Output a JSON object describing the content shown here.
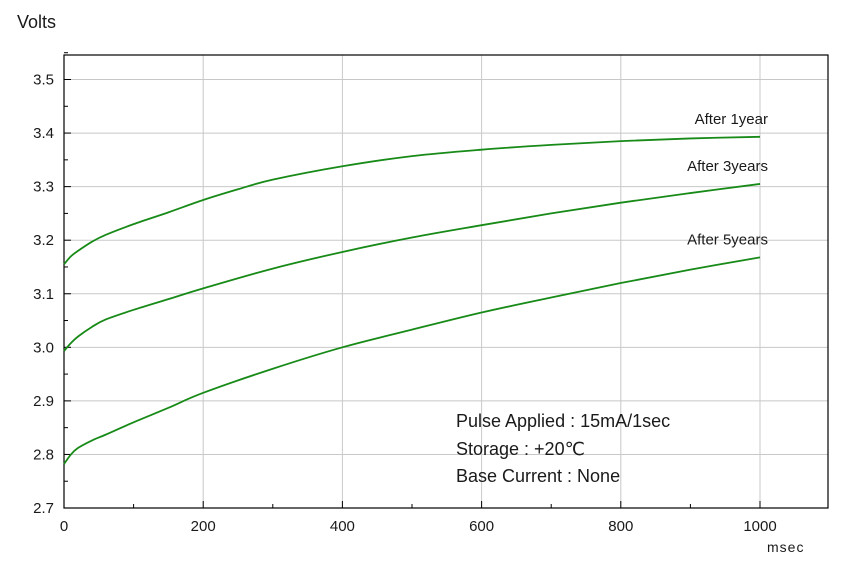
{
  "chart_data": {
    "type": "line",
    "ylabel": "Volts",
    "xlabel": "msec",
    "xlim": [
      0,
      1000
    ],
    "ylim": [
      2.7,
      3.55
    ],
    "x_ticks": [
      0,
      200,
      400,
      600,
      800,
      1000
    ],
    "x_tick_labels": [
      "0",
      "200",
      "400",
      "600",
      "800",
      "1000"
    ],
    "y_ticks": [
      2.7,
      2.8,
      2.9,
      3.0,
      3.1,
      3.2,
      3.3,
      3.4,
      3.5
    ],
    "y_tick_labels": [
      "2.7",
      "2.8",
      "2.9",
      "3.0",
      "3.1",
      "3.2",
      "3.3",
      "3.4",
      "3.5"
    ],
    "grid": true,
    "line_color": "#178a17",
    "series": [
      {
        "name": "After 1year",
        "x": [
          0,
          10,
          20,
          40,
          60,
          100,
          150,
          200,
          250,
          300,
          400,
          500,
          600,
          700,
          800,
          900,
          1000
        ],
        "y": [
          3.155,
          3.17,
          3.18,
          3.197,
          3.21,
          3.23,
          3.252,
          3.275,
          3.295,
          3.313,
          3.338,
          3.357,
          3.369,
          3.378,
          3.385,
          3.39,
          3.393
        ]
      },
      {
        "name": "After 3years",
        "x": [
          0,
          10,
          20,
          40,
          60,
          100,
          150,
          200,
          300,
          400,
          500,
          600,
          700,
          800,
          900,
          1000
        ],
        "y": [
          2.993,
          3.008,
          3.02,
          3.038,
          3.052,
          3.07,
          3.09,
          3.11,
          3.147,
          3.178,
          3.205,
          3.228,
          3.25,
          3.27,
          3.288,
          3.305
        ]
      },
      {
        "name": "After 5years",
        "x": [
          0,
          10,
          20,
          40,
          60,
          100,
          150,
          200,
          300,
          400,
          500,
          600,
          700,
          800,
          900,
          1000
        ],
        "y": [
          2.782,
          2.8,
          2.812,
          2.826,
          2.837,
          2.86,
          2.887,
          2.915,
          2.96,
          3.0,
          3.033,
          3.065,
          3.093,
          3.12,
          3.145,
          3.168
        ]
      }
    ],
    "annotations": [
      "Pulse Applied : 15mA/1sec",
      "Storage : +20℃",
      "Base Current : None"
    ]
  }
}
